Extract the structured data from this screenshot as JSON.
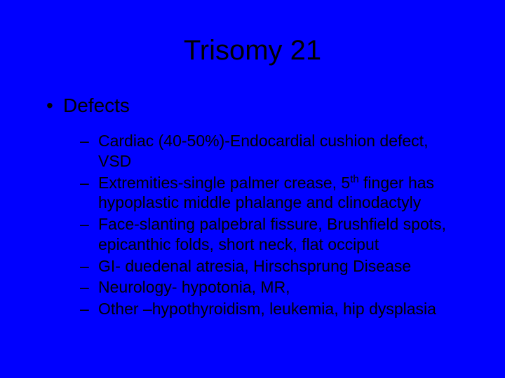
{
  "slide": {
    "background_color": "#0000ff",
    "text_color": "#000000",
    "font_family": "Arial",
    "title": {
      "text": "Trisomy 21",
      "fontsize": 40,
      "align": "center"
    },
    "bullets": [
      {
        "level": 1,
        "text": "Defects",
        "fontsize": 28,
        "marker": "•"
      }
    ],
    "sub_bullets": [
      {
        "level": 2,
        "text": "Cardiac (40-50%)-Endocardial cushion defect, VSD",
        "fontsize": 23,
        "marker": "–"
      },
      {
        "level": 2,
        "prefix": "Extremities-single palmer crease, 5",
        "sup": "th",
        "suffix": " finger has hypoplastic middle phalange and clinodactyly",
        "fontsize": 23,
        "marker": "–"
      },
      {
        "level": 2,
        "text": "Face-slanting palpebral fissure, Brushfield spots, epicanthic folds, short neck, flat occiput",
        "fontsize": 23,
        "marker": "–"
      },
      {
        "level": 2,
        "text": "GI- duedenal atresia, Hirschsprung Disease",
        "fontsize": 23,
        "marker": "–"
      },
      {
        "level": 2,
        "text": "Neurology- hypotonia, MR,",
        "fontsize": 23,
        "marker": "–"
      },
      {
        "level": 2,
        "text": "Other –hypothyroidism, leukemia, hip dysplasia",
        "fontsize": 23,
        "marker": "–"
      }
    ]
  }
}
